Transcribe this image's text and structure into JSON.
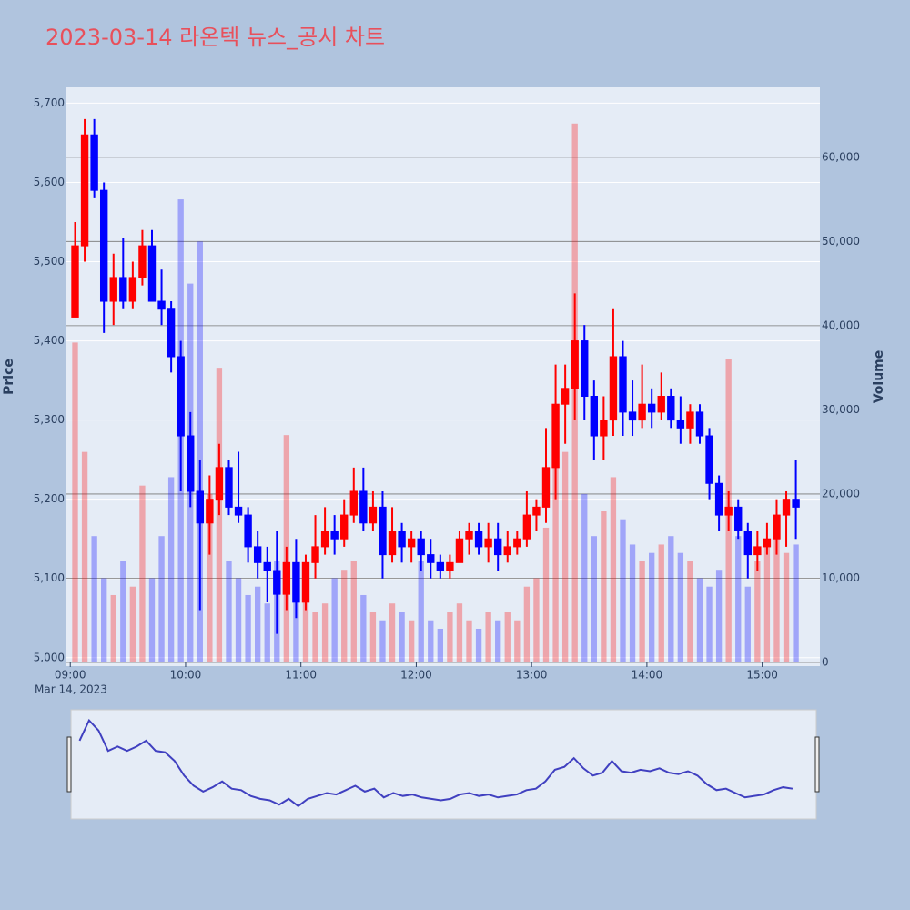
{
  "chart_data": {
    "type": "candlestick",
    "title": "2023-03-14 라온텍 뉴스_공시 차트",
    "y_title": "Price",
    "y2_title": "Volume",
    "x_date_label": "Mar 14, 2023",
    "increasing_color": "#ff0000",
    "decreasing_color": "#0000ff",
    "xlim": [
      "08:58",
      "15:30"
    ],
    "xticks": [
      "09:00",
      "10:00",
      "11:00",
      "12:00",
      "13:00",
      "14:00",
      "15:00"
    ],
    "ylim": [
      4994,
      5720
    ],
    "yticks": [
      {
        "value": 5000,
        "label": "5,000"
      },
      {
        "value": 5100,
        "label": "5,100"
      },
      {
        "value": 5200,
        "label": "5,200"
      },
      {
        "value": 5300,
        "label": "5,300"
      },
      {
        "value": 5400,
        "label": "5,400"
      },
      {
        "value": 5500,
        "label": "5,500"
      },
      {
        "value": 5600,
        "label": "5,600"
      },
      {
        "value": 5700,
        "label": "5,700"
      }
    ],
    "y2lim": [
      0,
      68300
    ],
    "y2ticks": [
      0,
      {
        "value": 10000,
        "label": "10,000"
      },
      {
        "value": 20000,
        "label": "20,000"
      },
      {
        "value": 30000,
        "label": "30,000"
      },
      {
        "value": 40000,
        "label": "40,000"
      },
      {
        "value": 50000,
        "label": "50,000"
      },
      {
        "value": 60000,
        "label": "60,000"
      }
    ],
    "x": [
      "09:00",
      "09:05",
      "09:10",
      "09:15",
      "09:20",
      "09:25",
      "09:30",
      "09:35",
      "09:40",
      "09:45",
      "09:50",
      "09:55",
      "10:00",
      "10:05",
      "10:10",
      "10:15",
      "10:20",
      "10:25",
      "10:30",
      "10:35",
      "10:40",
      "10:45",
      "10:50",
      "10:55",
      "11:00",
      "11:05",
      "11:10",
      "11:15",
      "11:20",
      "11:25",
      "11:30",
      "11:35",
      "11:40",
      "11:45",
      "11:50",
      "11:55",
      "12:00",
      "12:05",
      "12:10",
      "12:15",
      "12:20",
      "12:25",
      "12:30",
      "12:35",
      "12:40",
      "12:45",
      "12:50",
      "12:55",
      "13:00",
      "13:05",
      "13:10",
      "13:15",
      "13:20",
      "13:25",
      "13:30",
      "13:35",
      "13:40",
      "13:45",
      "13:50",
      "13:55",
      "14:00",
      "14:05",
      "14:10",
      "14:15",
      "14:20",
      "14:25",
      "14:30",
      "14:35",
      "14:40",
      "14:45",
      "14:50",
      "14:55",
      "15:00",
      "15:05",
      "15:10",
      "15:15"
    ],
    "open": [
      5430,
      5520,
      5660,
      5590,
      5450,
      5480,
      5450,
      5480,
      5520,
      5450,
      5440,
      5380,
      5280,
      5210,
      5170,
      5200,
      5240,
      5190,
      5180,
      5140,
      5120,
      5110,
      5080,
      5120,
      5070,
      5120,
      5140,
      5160,
      5150,
      5180,
      5210,
      5170,
      5190,
      5130,
      5160,
      5140,
      5150,
      5130,
      5120,
      5110,
      5120,
      5150,
      5160,
      5140,
      5150,
      5130,
      5140,
      5150,
      5180,
      5190,
      5240,
      5320,
      5340,
      5400,
      5330,
      5280,
      5300,
      5380,
      5310,
      5300,
      5320,
      5310,
      5330,
      5300,
      5290,
      5310,
      5280,
      5220,
      5180,
      5190,
      5160,
      5130,
      5140,
      5150,
      5180,
      5200
    ],
    "high": [
      5550,
      5680,
      5680,
      5600,
      5510,
      5530,
      5500,
      5540,
      5540,
      5490,
      5450,
      5400,
      5310,
      5250,
      5230,
      5270,
      5250,
      5260,
      5190,
      5160,
      5140,
      5160,
      5140,
      5150,
      5130,
      5180,
      5190,
      5180,
      5200,
      5240,
      5240,
      5210,
      5210,
      5190,
      5170,
      5160,
      5160,
      5150,
      5130,
      5130,
      5160,
      5170,
      5170,
      5170,
      5170,
      5160,
      5160,
      5210,
      5200,
      5290,
      5370,
      5370,
      5460,
      5420,
      5350,
      5330,
      5440,
      5400,
      5350,
      5370,
      5340,
      5360,
      5340,
      5330,
      5320,
      5320,
      5290,
      5230,
      5210,
      5200,
      5170,
      5160,
      5170,
      5200,
      5210,
      5250
    ],
    "low": [
      5430,
      5500,
      5580,
      5410,
      5420,
      5440,
      5440,
      5470,
      5450,
      5420,
      5360,
      5210,
      5190,
      5060,
      5130,
      5180,
      5180,
      5170,
      5120,
      5100,
      5070,
      5030,
      5060,
      5050,
      5060,
      5100,
      5130,
      5130,
      5140,
      5170,
      5160,
      5160,
      5100,
      5120,
      5120,
      5120,
      5110,
      5100,
      5100,
      5100,
      5120,
      5130,
      5130,
      5120,
      5110,
      5120,
      5130,
      5140,
      5160,
      5170,
      5200,
      5270,
      5300,
      5300,
      5250,
      5250,
      5280,
      5280,
      5280,
      5290,
      5290,
      5300,
      5290,
      5270,
      5270,
      5270,
      5200,
      5160,
      5160,
      5150,
      5100,
      5110,
      5130,
      5130,
      5140,
      5150
    ],
    "close": [
      5520,
      5660,
      5590,
      5450,
      5480,
      5450,
      5480,
      5520,
      5450,
      5440,
      5380,
      5280,
      5210,
      5170,
      5200,
      5240,
      5190,
      5180,
      5140,
      5120,
      5110,
      5080,
      5120,
      5070,
      5120,
      5140,
      5160,
      5150,
      5180,
      5210,
      5170,
      5190,
      5130,
      5160,
      5140,
      5150,
      5130,
      5120,
      5110,
      5120,
      5150,
      5160,
      5140,
      5150,
      5130,
      5140,
      5150,
      5180,
      5190,
      5240,
      5320,
      5340,
      5400,
      5330,
      5280,
      5300,
      5380,
      5310,
      5300,
      5320,
      5310,
      5330,
      5300,
      5290,
      5310,
      5280,
      5220,
      5180,
      5190,
      5160,
      5130,
      5140,
      5150,
      5180,
      5200,
      5190
    ],
    "volume": [
      38000,
      25000,
      15000,
      10000,
      8000,
      12000,
      9000,
      21000,
      10000,
      15000,
      22000,
      55000,
      45000,
      50000,
      20000,
      35000,
      12000,
      10000,
      8000,
      9000,
      7000,
      12000,
      27000,
      8000,
      9000,
      6000,
      7000,
      10000,
      11000,
      12000,
      8000,
      6000,
      5000,
      7000,
      6000,
      5000,
      12000,
      5000,
      4000,
      6000,
      7000,
      5000,
      4000,
      6000,
      5000,
      6000,
      5000,
      9000,
      10000,
      16000,
      30000,
      25000,
      64000,
      20000,
      15000,
      18000,
      22000,
      17000,
      14000,
      12000,
      13000,
      14000,
      15000,
      13000,
      12000,
      10000,
      9000,
      11000,
      36000,
      15000,
      9000,
      12000,
      14000,
      15000,
      13000,
      14000
    ]
  }
}
